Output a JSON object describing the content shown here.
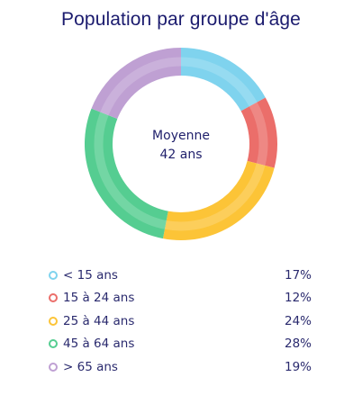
{
  "title": "Population par groupe d'âge",
  "center": {
    "line1": "Moyenne",
    "line2": "42 ans"
  },
  "chart_data": {
    "type": "pie",
    "title": "Population par groupe d'âge",
    "categories": [
      "< 15 ans",
      "15 à 24 ans",
      "25 à 44 ans",
      "45 à 64 ans",
      "> 65 ans"
    ],
    "values": [
      17,
      12,
      24,
      28,
      19
    ],
    "value_labels": [
      "17%",
      "12%",
      "24%",
      "28%",
      "19%"
    ],
    "colors": [
      "#7fd3ee",
      "#eb6e6a",
      "#fcc437",
      "#55cd91",
      "#bfa0d3"
    ],
    "donut": true,
    "center_label": "Moyenne 42 ans",
    "legend_position": "bottom"
  }
}
